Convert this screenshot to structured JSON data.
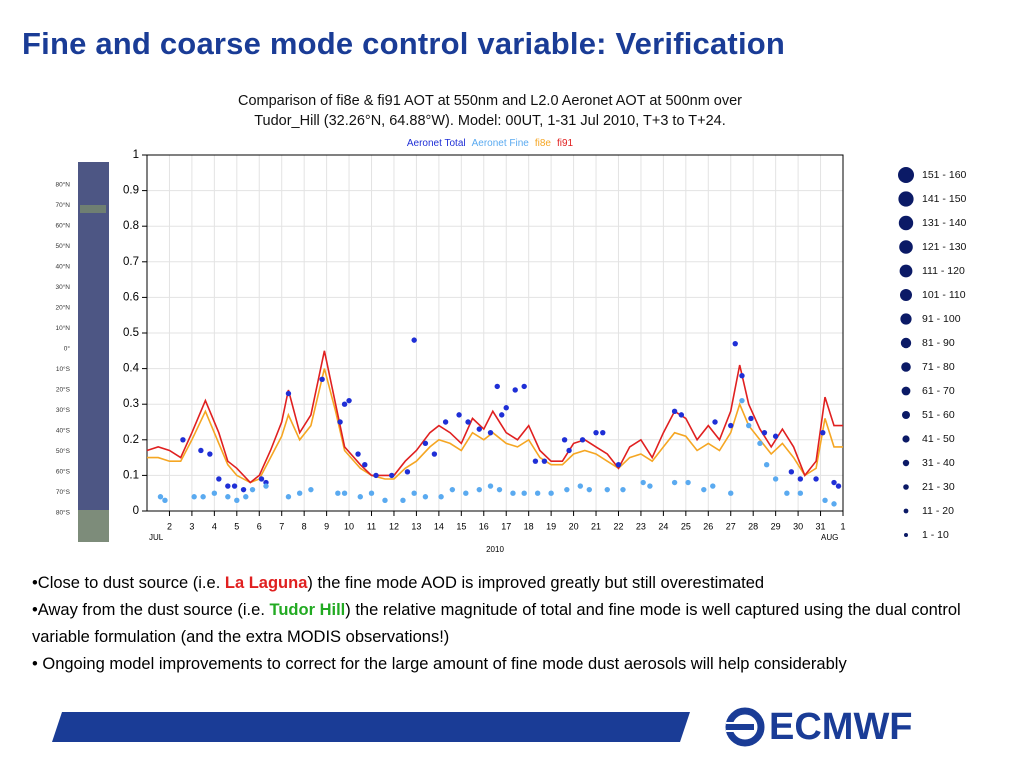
{
  "slide": {
    "title": "Fine and coarse mode control variable: Verification",
    "bullets": [
      [
        {
          "text": "•Close to dust source (i.e. "
        },
        {
          "text": "La Laguna",
          "color": "#e02020"
        },
        {
          "text": ") the fine mode AOD is improved greatly but still overestimated"
        }
      ],
      [
        {
          "text": "•Away from the dust source (i.e. "
        },
        {
          "text": "Tudor Hill",
          "color": "#22aa22"
        },
        {
          "text": ") the relative magnitude of total and fine mode is  well captured using the dual control variable formulation (and the extra MODIS observations!)"
        }
      ],
      [
        {
          "text": "• Ongoing model improvements to correct for the large amount of fine mode dust aerosols will help considerably"
        }
      ]
    ],
    "map_labels": [
      "80°N",
      "70°N",
      "60°N",
      "50°N",
      "40°N",
      "30°N",
      "20°N",
      "10°N",
      "0°",
      "10°S",
      "20°S",
      "30°S",
      "40°S",
      "50°S",
      "60°S",
      "70°S",
      "80°S"
    ],
    "size_legend": [
      "151 - 160",
      "141 - 150",
      "131 - 140",
      "121 - 130",
      "111 - 120",
      "101 - 110",
      "91 - 100",
      "81 - 90",
      "71 - 80",
      "61 - 70",
      "51 - 60",
      "41 - 50",
      "31 - 40",
      "21 - 30",
      "11 - 20",
      "1 - 10"
    ],
    "logo": "ECMWF"
  },
  "chart_data": {
    "type": "line",
    "title": [
      "Comparison of fi8e & fi91 AOT at 550nm and L2.0 Aeronet AOT at 500nm over",
      "Tudor_Hill (32.26°N, 64.88°W). Model: 00UT, 1-31 Jul 2010, T+3 to T+24."
    ],
    "x_label": "2010",
    "x_start_label": "JUL",
    "x_end_label": "AUG",
    "xlim": [
      1,
      32
    ],
    "xticks": [
      2,
      3,
      4,
      5,
      6,
      7,
      8,
      9,
      10,
      11,
      12,
      13,
      14,
      15,
      16,
      17,
      18,
      19,
      20,
      21,
      22,
      23,
      24,
      25,
      26,
      27,
      28,
      29,
      30,
      31,
      {
        "value": 32,
        "label": "1"
      }
    ],
    "ylim": [
      0,
      1
    ],
    "yticks": [
      0,
      0.1,
      0.2,
      0.3,
      0.4,
      0.5,
      0.6,
      0.7,
      0.8,
      0.9,
      1
    ],
    "grid": true,
    "x": [
      1,
      1.5,
      2,
      2.5,
      3,
      3.6,
      4.2,
      4.6,
      5,
      5.6,
      6,
      6.5,
      7,
      7.3,
      7.8,
      8.3,
      8.9,
      9.4,
      9.8,
      10.5,
      11,
      11.6,
      12,
      12.5,
      13,
      13.6,
      14,
      14.5,
      15,
      15.5,
      16,
      16.4,
      17,
      17.5,
      18,
      18.5,
      19,
      19.5,
      20,
      20.5,
      21,
      21.5,
      22,
      22.5,
      23,
      23.5,
      24,
      24.5,
      25,
      25.5,
      26,
      26.5,
      27,
      27.4,
      27.8,
      28.3,
      28.8,
      29.3,
      29.8,
      30.3,
      30.8,
      31.2,
      31.6,
      32
    ],
    "series": [
      {
        "name": "Aeronet Total",
        "color": "#1f2fd6",
        "style": "dots",
        "x": [
          2.6,
          3.4,
          3.8,
          4.2,
          4.6,
          4.9,
          5.3,
          6.1,
          6.3,
          7.3,
          8.8,
          9.6,
          9.8,
          10,
          10.4,
          10.7,
          11.2,
          11.9,
          12.6,
          12.9,
          13.4,
          13.8,
          14.3,
          14.9,
          15.3,
          15.8,
          16.3,
          16.6,
          16.8,
          17,
          17.4,
          17.8,
          18.3,
          18.7,
          19.6,
          19.8,
          20.4,
          21,
          21.3,
          22,
          24.5,
          24.8,
          26.3,
          27,
          27.2,
          27.5,
          27.9,
          28.5,
          29,
          29.7,
          30.1,
          30.8,
          31.1,
          31.6,
          31.8
        ],
        "values": [
          0.2,
          0.17,
          0.16,
          0.09,
          0.07,
          0.07,
          0.06,
          0.09,
          0.08,
          0.33,
          0.37,
          0.25,
          0.3,
          0.31,
          0.16,
          0.13,
          0.1,
          0.1,
          0.11,
          0.48,
          0.19,
          0.16,
          0.25,
          0.27,
          0.25,
          0.23,
          0.22,
          0.35,
          0.27,
          0.29,
          0.34,
          0.35,
          0.14,
          0.14,
          0.2,
          0.17,
          0.2,
          0.22,
          0.22,
          0.13,
          0.28,
          0.27,
          0.25,
          0.24,
          0.47,
          0.38,
          0.26,
          0.22,
          0.21,
          0.11,
          0.09,
          0.09,
          0.22,
          0.08,
          0.07
        ]
      },
      {
        "name": "Aeronet Fine",
        "color": "#5aaaf0",
        "style": "dots",
        "x": [
          1.6,
          1.8,
          3.1,
          3.5,
          4,
          4.6,
          5,
          5.4,
          5.7,
          6.3,
          7.3,
          7.8,
          8.3,
          9.5,
          9.8,
          10.5,
          11,
          11.6,
          12.4,
          12.9,
          13.4,
          14.1,
          14.6,
          15.2,
          15.8,
          16.3,
          16.7,
          17.3,
          17.8,
          18.4,
          19,
          19.7,
          20.3,
          20.7,
          21.5,
          22.2,
          23.1,
          23.4,
          24.5,
          25.1,
          25.8,
          26.2,
          27,
          27.5,
          27.8,
          28.3,
          28.6,
          29,
          29.5,
          30.1,
          31.2,
          31.6
        ],
        "values": [
          0.04,
          0.03,
          0.04,
          0.04,
          0.05,
          0.04,
          0.03,
          0.04,
          0.06,
          0.07,
          0.04,
          0.05,
          0.06,
          0.05,
          0.05,
          0.04,
          0.05,
          0.03,
          0.03,
          0.05,
          0.04,
          0.04,
          0.06,
          0.05,
          0.06,
          0.07,
          0.06,
          0.05,
          0.05,
          0.05,
          0.05,
          0.06,
          0.07,
          0.06,
          0.06,
          0.06,
          0.08,
          0.07,
          0.08,
          0.08,
          0.06,
          0.07,
          0.05,
          0.31,
          0.24,
          0.19,
          0.13,
          0.09,
          0.05,
          0.05,
          0.03,
          0.02
        ]
      },
      {
        "name": "fi8e",
        "color": "#f5a623",
        "style": "line",
        "values": [
          0.15,
          0.15,
          0.14,
          0.14,
          0.2,
          0.28,
          0.19,
          0.13,
          0.1,
          0.08,
          0.09,
          0.15,
          0.21,
          0.27,
          0.2,
          0.24,
          0.4,
          0.28,
          0.17,
          0.12,
          0.1,
          0.09,
          0.09,
          0.12,
          0.14,
          0.18,
          0.2,
          0.19,
          0.17,
          0.22,
          0.2,
          0.22,
          0.19,
          0.18,
          0.2,
          0.15,
          0.13,
          0.13,
          0.16,
          0.17,
          0.16,
          0.14,
          0.12,
          0.15,
          0.16,
          0.14,
          0.18,
          0.22,
          0.21,
          0.17,
          0.19,
          0.17,
          0.22,
          0.3,
          0.24,
          0.2,
          0.16,
          0.19,
          0.15,
          0.1,
          0.12,
          0.26,
          0.18,
          0.18
        ]
      },
      {
        "name": "fi91",
        "color": "#e02020",
        "style": "line",
        "values": [
          0.17,
          0.18,
          0.17,
          0.15,
          0.22,
          0.31,
          0.22,
          0.14,
          0.12,
          0.08,
          0.1,
          0.17,
          0.25,
          0.34,
          0.22,
          0.27,
          0.45,
          0.3,
          0.18,
          0.13,
          0.1,
          0.1,
          0.1,
          0.14,
          0.17,
          0.22,
          0.24,
          0.22,
          0.19,
          0.26,
          0.23,
          0.28,
          0.22,
          0.2,
          0.24,
          0.17,
          0.14,
          0.14,
          0.19,
          0.2,
          0.18,
          0.16,
          0.12,
          0.18,
          0.2,
          0.15,
          0.22,
          0.28,
          0.26,
          0.2,
          0.24,
          0.2,
          0.28,
          0.41,
          0.3,
          0.23,
          0.18,
          0.23,
          0.18,
          0.1,
          0.14,
          0.32,
          0.24,
          0.24
        ]
      }
    ]
  }
}
